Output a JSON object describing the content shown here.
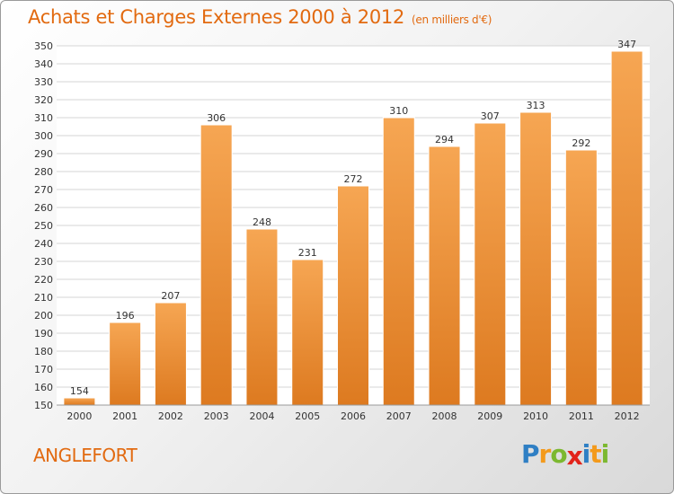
{
  "header": {
    "title": "Achats et Charges Externes 2000 à 2012",
    "subtitle": "(en milliers d'€)"
  },
  "footer": {
    "location": "ANGLEFORT",
    "brand_letters": [
      {
        "char": "P",
        "color": "#2f7fc4"
      },
      {
        "char": "r",
        "color": "#f39a1c"
      },
      {
        "char": "o",
        "color": "#7cb830"
      },
      {
        "char": "x",
        "color": "#e2231a"
      },
      {
        "char": "i",
        "color": "#2f7fc4"
      },
      {
        "char": "t",
        "color": "#f39a1c"
      },
      {
        "char": "i",
        "color": "#7cb830"
      }
    ]
  },
  "colors": {
    "bar_light": "#f6a653",
    "bar_dark": "#dd7a20",
    "grid": "#d6d6d6",
    "accent": "#e26a10"
  },
  "chart_data": {
    "type": "bar",
    "title": "Achats et Charges Externes 2000 à 2012",
    "subtitle": "(en milliers d'€)",
    "categories": [
      "2000",
      "2001",
      "2002",
      "2003",
      "2004",
      "2005",
      "2006",
      "2007",
      "2008",
      "2009",
      "2010",
      "2011",
      "2012"
    ],
    "values": [
      154,
      196,
      207,
      306,
      248,
      231,
      272,
      310,
      294,
      307,
      313,
      292,
      347
    ],
    "ylim": [
      150,
      350
    ],
    "y_ticks": [
      150,
      160,
      170,
      180,
      190,
      200,
      210,
      220,
      230,
      240,
      250,
      260,
      270,
      280,
      290,
      300,
      310,
      320,
      330,
      340,
      350
    ],
    "grid": true,
    "xlabel": "",
    "ylabel": ""
  }
}
